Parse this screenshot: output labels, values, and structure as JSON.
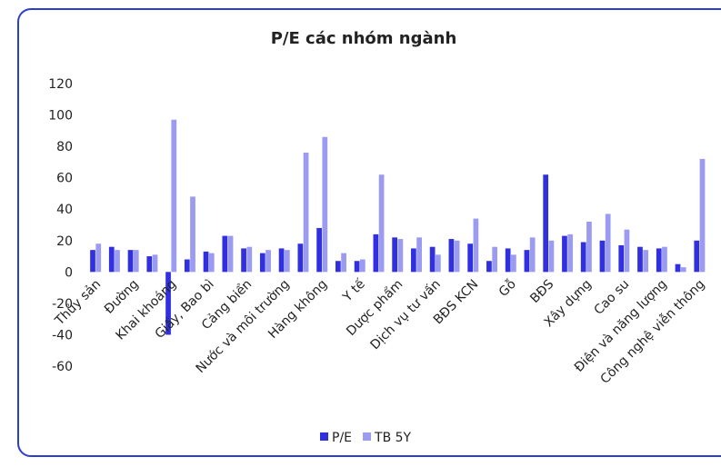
{
  "chart_data": {
    "type": "bar",
    "title": "P/E các nhóm ngành",
    "categories": [
      "Thủy sản",
      null,
      "Đường",
      null,
      "Khai khoáng",
      null,
      "Giấy, Bao bì",
      null,
      "Cảng biển",
      null,
      "Nước và môi trường",
      null,
      "Hàng không",
      null,
      "Y tế",
      null,
      "Dược phẩm",
      null,
      "Dịch vụ tư vấn",
      null,
      "BĐS KCN",
      null,
      "Gỗ",
      null,
      "BĐS",
      null,
      "Xây dựng",
      null,
      "Cao su",
      null,
      "Điện và năng lượng",
      null,
      "Công nghệ viễn thông"
    ],
    "series": [
      {
        "name": "P/E",
        "color": "#3030e0",
        "values": [
          14,
          16,
          14,
          10,
          -40,
          8,
          13,
          23,
          15,
          12,
          15,
          18,
          28,
          7,
          7,
          24,
          22,
          15,
          16,
          21,
          18,
          7,
          15,
          14,
          62,
          23,
          19,
          20,
          17,
          16,
          15,
          5,
          20
        ]
      },
      {
        "name": "TB 5Y",
        "color": "#9b9bf2",
        "values": [
          18,
          14,
          14,
          11,
          97,
          48,
          12,
          23,
          16,
          14,
          14,
          76,
          86,
          12,
          8,
          62,
          21,
          22,
          11,
          20,
          34,
          16,
          11,
          22,
          20,
          24,
          32,
          37,
          27,
          14,
          16,
          3,
          72
        ]
      }
    ],
    "ylim": [
      -60,
      120
    ],
    "yticks": [
      -60,
      -40,
      -20,
      0,
      20,
      40,
      60,
      80,
      100,
      120
    ],
    "legend": "bottom"
  }
}
